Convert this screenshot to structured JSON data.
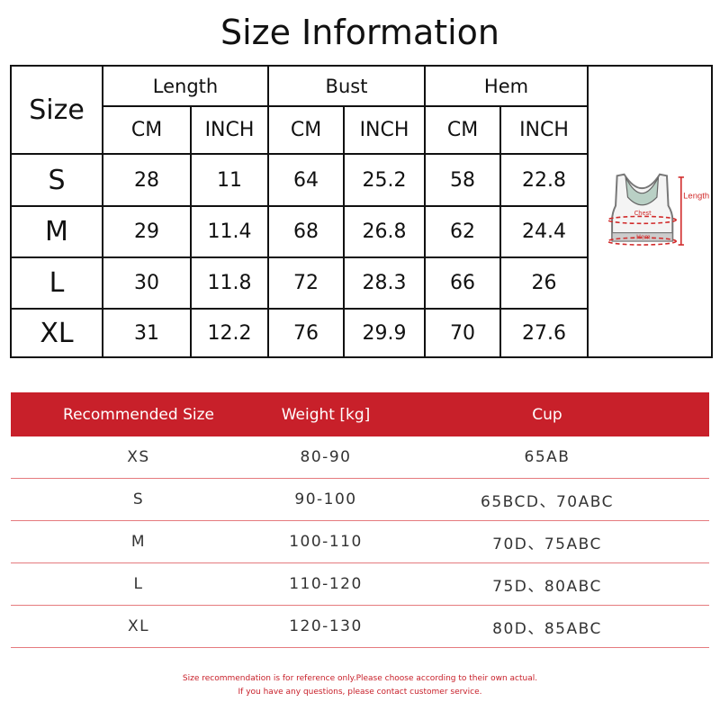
{
  "title": "Size Information",
  "size_table": {
    "size_label": "Size",
    "groups": [
      "Length",
      "Bust",
      "Hem"
    ],
    "units": [
      "CM",
      "INCH",
      "CM",
      "INCH",
      "CM",
      "INCH"
    ],
    "rows": [
      [
        "S",
        "28",
        "11",
        "64",
        "25.2",
        "58",
        "22.8"
      ],
      [
        "M",
        "29",
        "11.4",
        "68",
        "26.8",
        "62",
        "24.4"
      ],
      [
        "L",
        "30",
        "11.8",
        "72",
        "28.3",
        "66",
        "26"
      ],
      [
        "XL",
        "31",
        "12.2",
        "76",
        "29.9",
        "70",
        "27.6"
      ]
    ],
    "diagram_labels": {
      "length": "Length",
      "chest": "Chest",
      "hem": "Hem"
    }
  },
  "recommend": {
    "headers": [
      "Recommended Size",
      "Weight [kg]",
      "Cup"
    ],
    "rows": [
      [
        "XS",
        "80-90",
        "65AB"
      ],
      [
        "S",
        "90-100",
        "65BCD、70ABC"
      ],
      [
        "M",
        "100-110",
        "70D、75ABC"
      ],
      [
        "L",
        "110-120",
        "75D、80ABC"
      ],
      [
        "XL",
        "120-130",
        "80D、85ABC"
      ]
    ]
  },
  "notes": [
    "Size recommendation is for reference only.Please choose according to their own actual.",
    "If you have any questions, please contact customer service."
  ],
  "colors": {
    "accent": "#c8202a"
  }
}
